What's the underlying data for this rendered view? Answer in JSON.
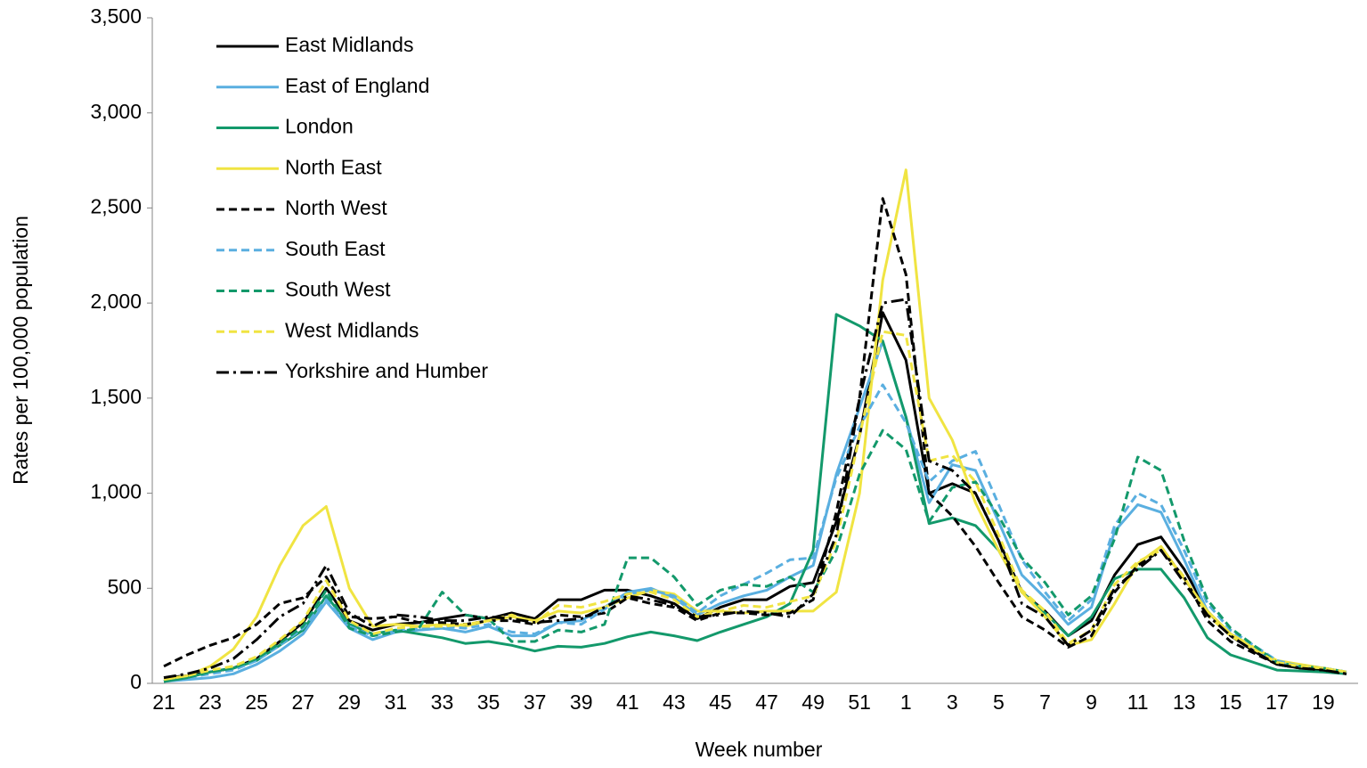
{
  "chart_data": {
    "type": "line",
    "x_label": "Week number",
    "y_label": "Rates per 100,000 population",
    "categories": [
      "21",
      null,
      "23",
      null,
      "25",
      null,
      "27",
      null,
      "29",
      null,
      "31",
      null,
      "33",
      null,
      "35",
      null,
      "37",
      null,
      "39",
      null,
      "41",
      null,
      "43",
      null,
      "45",
      null,
      "47",
      null,
      "49",
      null,
      "51",
      null,
      "1",
      null,
      "3",
      null,
      "5",
      null,
      "7",
      null,
      "9",
      null,
      "11",
      null,
      "13",
      null,
      "15",
      null,
      "17",
      null,
      "19",
      null
    ],
    "ylim": [
      0,
      3500
    ],
    "yticks": [
      0,
      500,
      {
        "value": 1000,
        "label": "1,000"
      },
      {
        "value": 1500,
        "label": "1,500"
      },
      {
        "value": 2000,
        "label": "2,000"
      },
      {
        "value": 2500,
        "label": "2,500"
      },
      {
        "value": 3000,
        "label": "3,000"
      },
      {
        "value": 3500,
        "label": "3,500"
      }
    ],
    "legend": "upper left",
    "series": [
      {
        "name": "East Midlands",
        "color": "#000000",
        "dash": "solid",
        "values": [
          30,
          40,
          60,
          80,
          130,
          220,
          320,
          500,
          330,
          280,
          310,
          320,
          340,
          360,
          340,
          370,
          340,
          440,
          440,
          490,
          490,
          460,
          420,
          340,
          400,
          440,
          440,
          510,
          530,
          850,
          1300,
          1950,
          1700,
          1000,
          1050,
          1000,
          750,
          480,
          380,
          250,
          330,
          570,
          730,
          770,
          600,
          380,
          250,
          170,
          100,
          80,
          70,
          50
        ]
      },
      {
        "name": "East of England",
        "color": "#5aafe0",
        "dash": "solid",
        "values": [
          10,
          20,
          30,
          50,
          100,
          170,
          260,
          430,
          290,
          230,
          270,
          280,
          290,
          270,
          300,
          250,
          250,
          320,
          330,
          400,
          480,
          500,
          450,
          360,
          420,
          460,
          490,
          560,
          620,
          1100,
          1450,
          1800,
          1400,
          950,
          1150,
          1120,
          850,
          570,
          450,
          310,
          400,
          800,
          940,
          900,
          650,
          380,
          260,
          190,
          110,
          90,
          80,
          60
        ]
      },
      {
        "name": "London",
        "color": "#13996b",
        "dash": "solid",
        "values": [
          10,
          30,
          60,
          80,
          120,
          200,
          280,
          460,
          310,
          260,
          280,
          260,
          240,
          210,
          220,
          200,
          170,
          195,
          190,
          210,
          245,
          270,
          250,
          225,
          270,
          310,
          350,
          420,
          700,
          1940,
          1880,
          1800,
          1400,
          840,
          870,
          830,
          700,
          480,
          370,
          250,
          350,
          550,
          600,
          600,
          450,
          240,
          150,
          110,
          70,
          65,
          60,
          50
        ]
      },
      {
        "name": "North East",
        "color": "#f0e442",
        "dash": "solid",
        "values": [
          20,
          40,
          90,
          180,
          350,
          620,
          830,
          930,
          500,
          300,
          310,
          300,
          310,
          300,
          330,
          350,
          330,
          380,
          370,
          400,
          450,
          490,
          470,
          380,
          380,
          370,
          380,
          380,
          380,
          480,
          1000,
          2120,
          2700,
          1500,
          1280,
          950,
          700,
          480,
          350,
          200,
          230,
          420,
          630,
          720,
          550,
          380,
          260,
          190,
          120,
          100,
          80,
          60
        ]
      },
      {
        "name": "North West",
        "color": "#000000",
        "dash": "dashed",
        "values": [
          90,
          150,
          200,
          240,
          310,
          420,
          450,
          560,
          350,
          340,
          350,
          320,
          320,
          310,
          330,
          330,
          310,
          360,
          350,
          370,
          450,
          420,
          400,
          330,
          370,
          370,
          360,
          370,
          440,
          900,
          1500,
          2550,
          2150,
          1000,
          880,
          720,
          530,
          350,
          280,
          190,
          250,
          480,
          620,
          700,
          560,
          330,
          220,
          160,
          100,
          80,
          70,
          50
        ]
      },
      {
        "name": "South East",
        "color": "#5aafe0",
        "dash": "dashed",
        "values": [
          10,
          30,
          50,
          70,
          120,
          200,
          290,
          440,
          300,
          250,
          280,
          290,
          300,
          290,
          310,
          270,
          260,
          320,
          310,
          390,
          470,
          490,
          460,
          370,
          460,
          520,
          580,
          650,
          660,
          1080,
          1350,
          1570,
          1370,
          1060,
          1170,
          1220,
          940,
          650,
          480,
          330,
          440,
          830,
          1000,
          940,
          700,
          420,
          280,
          200,
          120,
          90,
          80,
          60
        ]
      },
      {
        "name": "South West",
        "color": "#13996b",
        "dash": "dashed",
        "values": [
          10,
          30,
          60,
          80,
          130,
          210,
          300,
          490,
          290,
          250,
          270,
          290,
          480,
          360,
          340,
          220,
          220,
          280,
          270,
          310,
          660,
          660,
          560,
          410,
          490,
          520,
          510,
          560,
          480,
          700,
          1100,
          1330,
          1230,
          850,
          1030,
          1060,
          880,
          660,
          530,
          360,
          460,
          760,
          1190,
          1120,
          750,
          440,
          290,
          200,
          110,
          90,
          80,
          60
        ]
      },
      {
        "name": "West Midlands",
        "color": "#f0e442",
        "dash": "dashed",
        "values": [
          20,
          40,
          70,
          90,
          140,
          230,
          330,
          540,
          330,
          260,
          290,
          300,
          300,
          310,
          330,
          360,
          320,
          410,
          400,
          430,
          470,
          480,
          440,
          350,
          380,
          410,
          400,
          430,
          460,
          750,
          1300,
          1850,
          1830,
          1170,
          1200,
          1060,
          780,
          490,
          380,
          210,
          280,
          520,
          640,
          700,
          560,
          360,
          250,
          180,
          110,
          90,
          80,
          60
        ]
      },
      {
        "name": "Yorkshire and Humber",
        "color": "#000000",
        "dash": "dashdot",
        "values": [
          30,
          50,
          80,
          130,
          230,
          350,
          420,
          620,
          370,
          300,
          360,
          350,
          330,
          330,
          350,
          340,
          320,
          330,
          340,
          400,
          460,
          440,
          410,
          350,
          360,
          380,
          370,
          350,
          470,
          780,
          1500,
          2000,
          2020,
          1170,
          1120,
          1000,
          750,
          420,
          350,
          200,
          280,
          500,
          600,
          700,
          530,
          360,
          250,
          170,
          100,
          80,
          70,
          50
        ]
      }
    ]
  }
}
